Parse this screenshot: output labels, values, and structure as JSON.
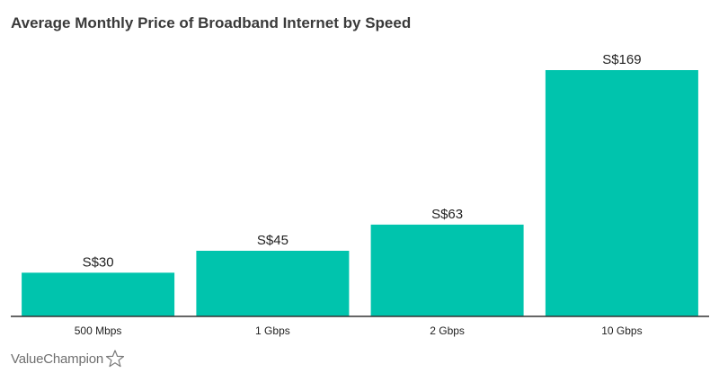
{
  "chart_data": {
    "type": "bar",
    "title": "Average Monthly Price of Broadband Internet by Speed",
    "categories": [
      "500 Mbps",
      "1 Gbps",
      "2 Gbps",
      "10 Gbps"
    ],
    "values": [
      30,
      45,
      63,
      169
    ],
    "value_labels": [
      "S$30",
      "S$45",
      "S$63",
      "S$169"
    ],
    "xlabel": "",
    "ylabel": "",
    "ylim": [
      0,
      169
    ],
    "grid": false,
    "legend": "none",
    "bar_color": "#00c4ad",
    "axis_color": "#333333"
  },
  "brand": {
    "name": "ValueChampion",
    "icon": "star-outline-icon"
  }
}
